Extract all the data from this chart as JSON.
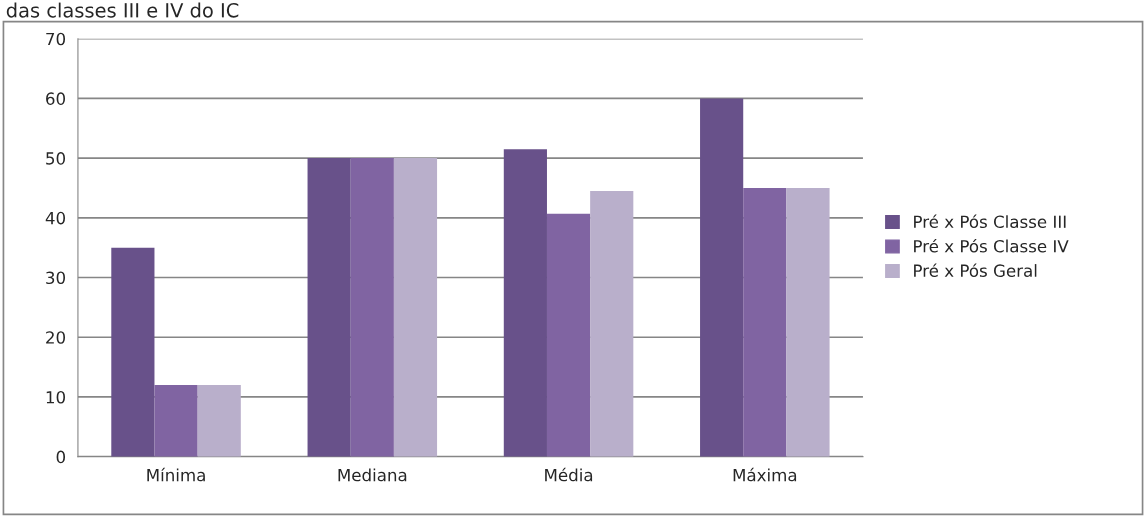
{
  "chart_data": {
    "type": "bar",
    "title": "das classes III e IV do IC",
    "categories": [
      "Mínima",
      "Mediana",
      "Média",
      "Máxima"
    ],
    "series": [
      {
        "name": "Pré x Pós Classe III",
        "color": "#68518a",
        "values": [
          35,
          50,
          51.5,
          60
        ]
      },
      {
        "name": "Pré x Pós Classe IV",
        "color": "#8064a2",
        "values": [
          12,
          50,
          40.7,
          45
        ]
      },
      {
        "name": "Pré x Pós Geral",
        "color": "#b9afcb",
        "values": [
          12,
          50,
          44.5,
          45
        ]
      }
    ],
    "ylim": [
      0,
      70
    ],
    "yticks": [
      0,
      10,
      20,
      30,
      40,
      50,
      60,
      70
    ],
    "grid": "y",
    "legend": "right"
  }
}
